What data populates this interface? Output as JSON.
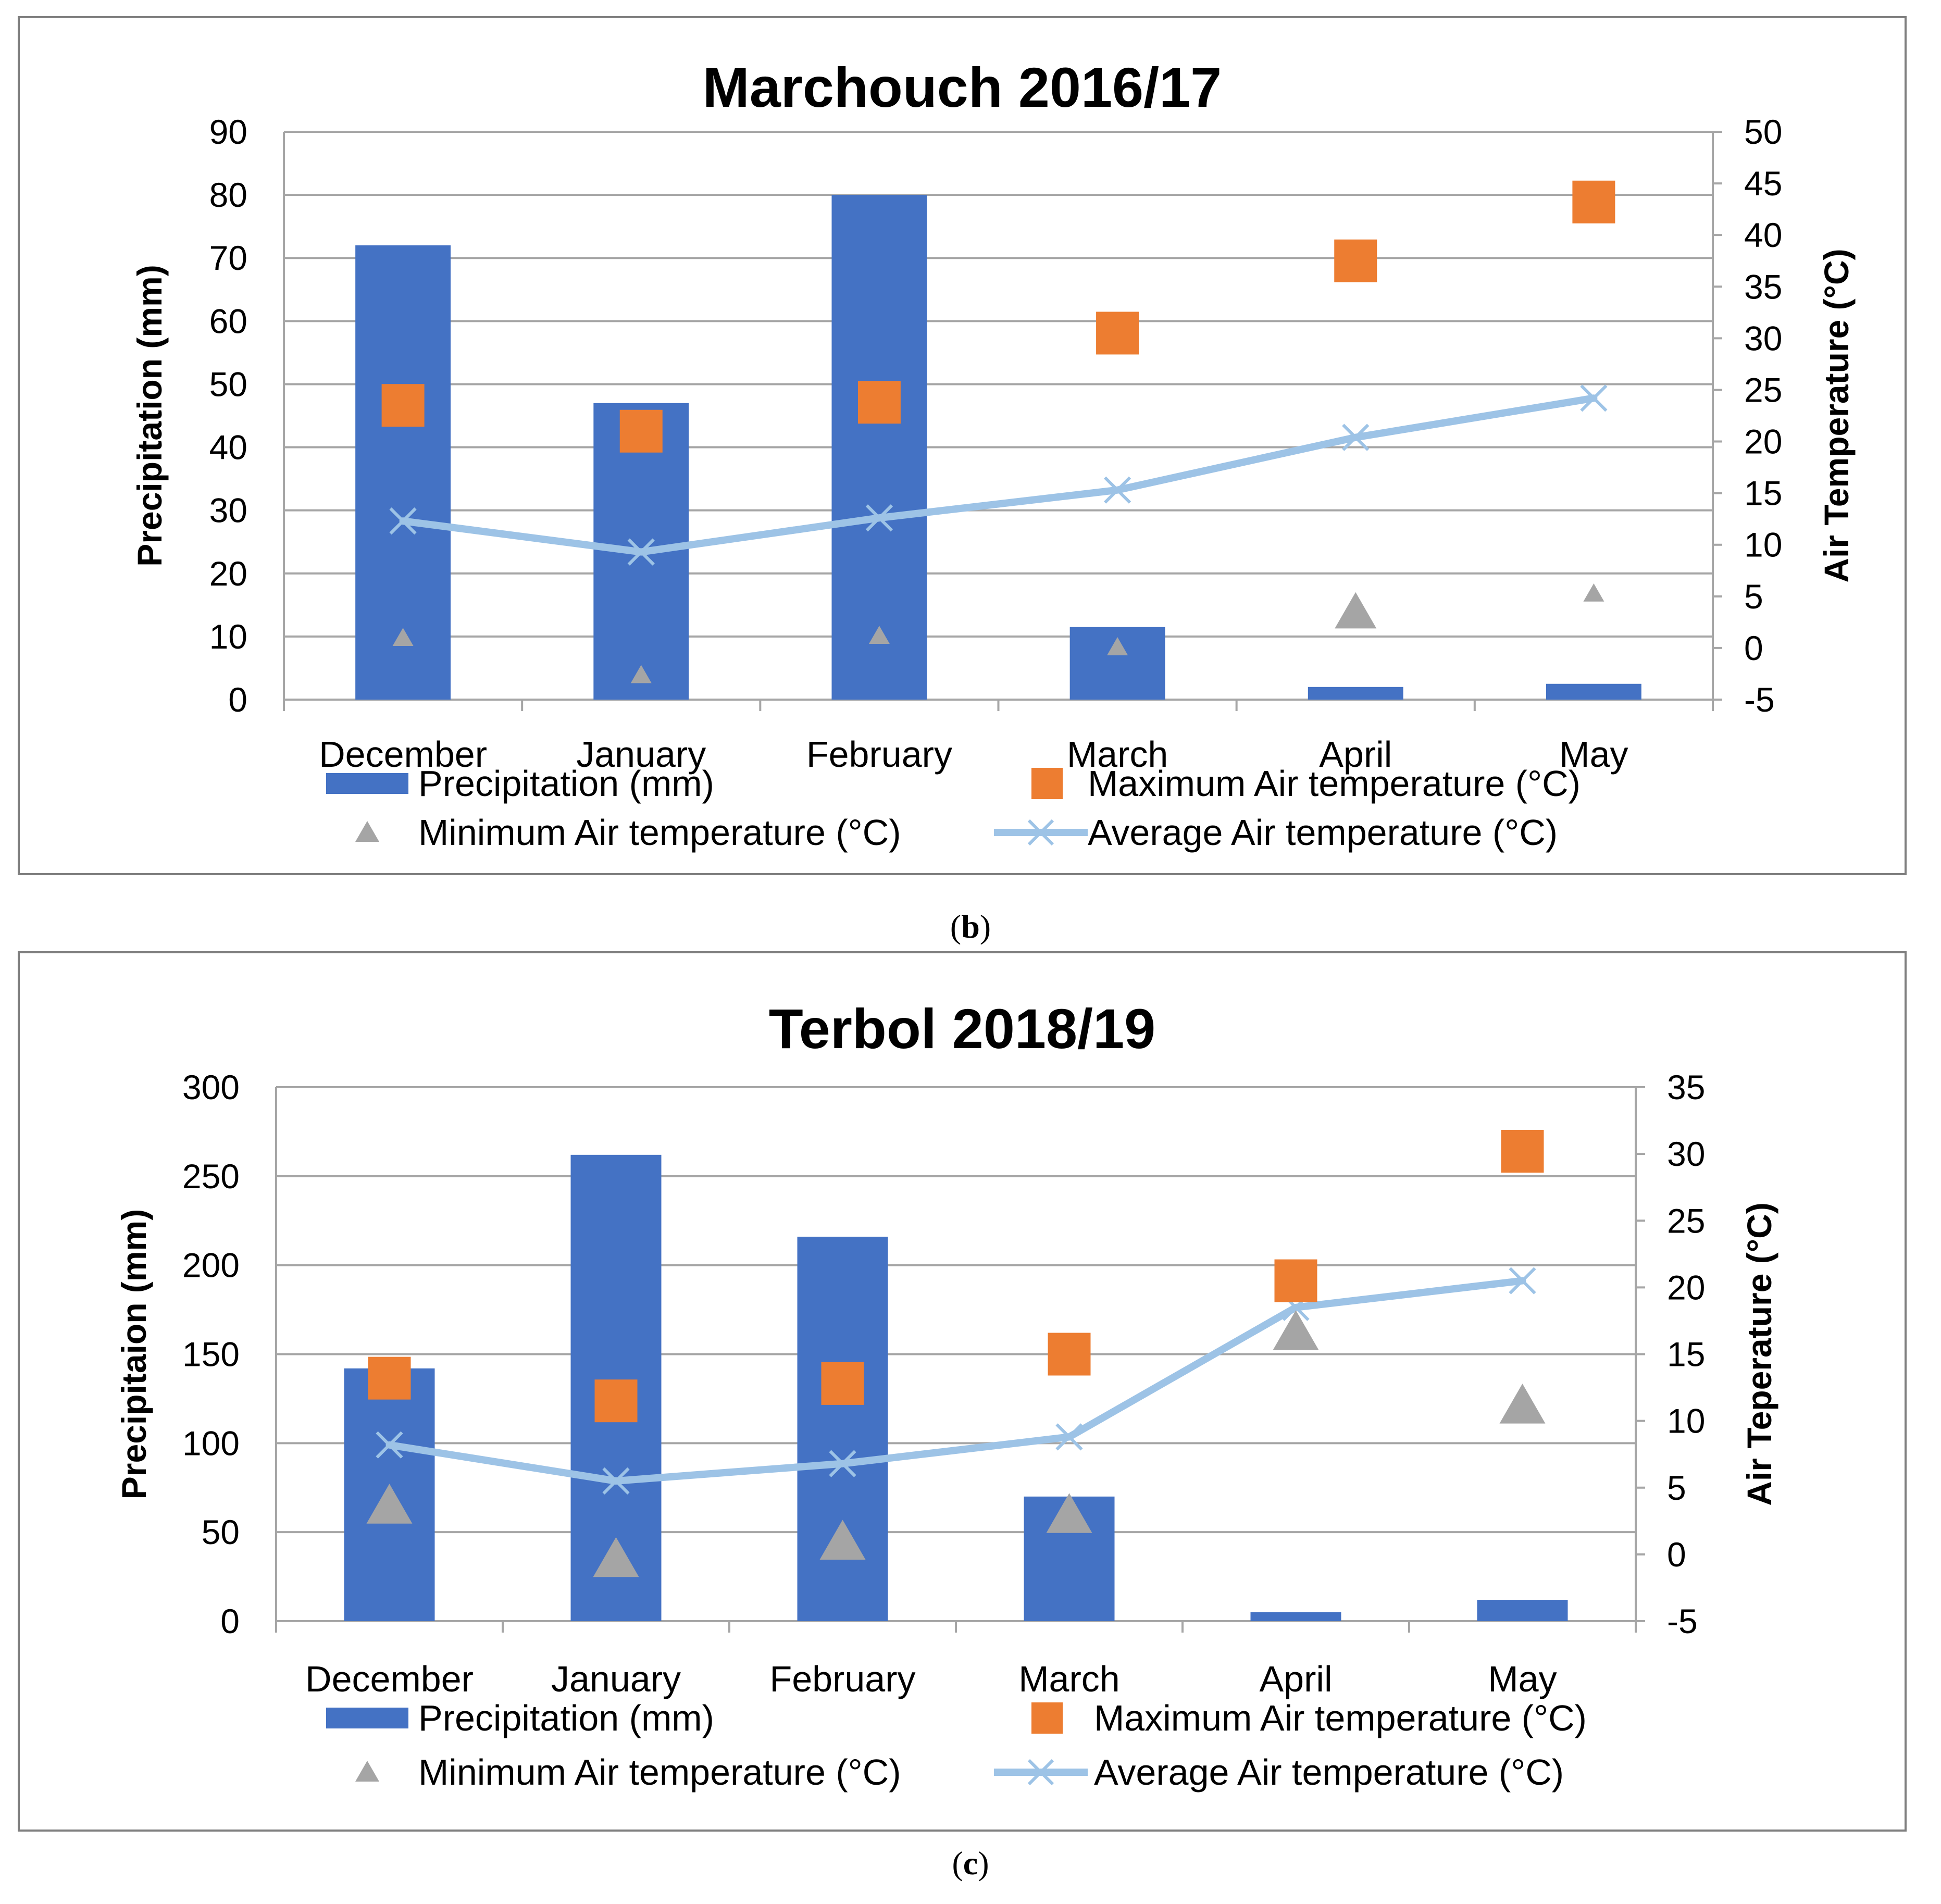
{
  "colors": {
    "precip": "#4472C4",
    "max": "#ED7D31",
    "min": "#A5A5A5",
    "avg": "#9DC3E6",
    "grid": "#A6A6A6",
    "frame": "#7F7F7F",
    "text": "#000000"
  },
  "legend": {
    "precip": "Precipitation (mm)",
    "max": "Maximum Air temperature (°C)",
    "min": "Minimum Air temperature (°C)",
    "avg": "Average Air temperature (°C)"
  },
  "captions": {
    "b_open": "(",
    "b": "b",
    "b_close": ")",
    "c_open": "(",
    "c": "c",
    "c_close": ")"
  },
  "chart_data": [
    {
      "type": "bar",
      "title": "Marchouch 2016/17",
      "categories": [
        "December",
        "January",
        "February",
        "March",
        "April",
        "May"
      ],
      "ylabel": "Precipitation (mm)",
      "y2label": "Air Temperature (°C)",
      "ylim": [
        0,
        90
      ],
      "yticks": [
        0,
        10,
        20,
        30,
        40,
        50,
        60,
        70,
        80,
        90
      ],
      "y2lim": [
        -5,
        50
      ],
      "y2ticks": [
        -5,
        0,
        5,
        10,
        15,
        20,
        25,
        30,
        35,
        40,
        45,
        50
      ],
      "grid": true,
      "legend_position": "bottom",
      "series": [
        {
          "name": "Precipitation (mm)",
          "kind": "bar",
          "axis": "left",
          "values": [
            72,
            47,
            80,
            11.5,
            2,
            2.5
          ]
        },
        {
          "name": "Maximum Air temperature (°C)",
          "kind": "marker-square",
          "axis": "right",
          "values": [
            23.5,
            21,
            23.8,
            30.5,
            37.5,
            43.2
          ]
        },
        {
          "name": "Minimum Air temperature (°C)",
          "kind": "marker-triangle",
          "axis": "right",
          "values": [
            0.9,
            -2.7,
            1.1,
            0.0,
            3.3,
            5.2
          ]
        },
        {
          "name": "Average Air temperature (°C)",
          "kind": "line-x",
          "axis": "right",
          "values": [
            12.3,
            9.3,
            12.6,
            15.3,
            20.4,
            24.2
          ]
        }
      ]
    },
    {
      "type": "bar",
      "title": "Terbol 2018/19",
      "categories": [
        "December",
        "January",
        "February",
        "March",
        "April",
        "May"
      ],
      "ylabel": "Precipitaion (mm)",
      "y2label": "Air Teperature (°C)",
      "ylim": [
        0,
        300
      ],
      "yticks": [
        0,
        50,
        100,
        150,
        200,
        250,
        300
      ],
      "y2lim": [
        -5,
        35
      ],
      "y2ticks": [
        -5,
        0,
        5,
        10,
        15,
        20,
        25,
        30,
        35
      ],
      "grid": true,
      "legend_position": "bottom",
      "series": [
        {
          "name": "Precipitation (mm)",
          "kind": "bar",
          "axis": "left",
          "values": [
            142,
            262,
            216,
            70,
            5,
            12
          ]
        },
        {
          "name": "Maximum Air temperature (°C)",
          "kind": "marker-square",
          "axis": "right",
          "values": [
            13.2,
            11.5,
            12.8,
            15.0,
            20.5,
            30.2
          ]
        },
        {
          "name": "Minimum Air temperature (°C)",
          "kind": "marker-triangle",
          "axis": "right",
          "values": [
            3.5,
            -0.5,
            0.8,
            2.8,
            16.5,
            11.0
          ]
        },
        {
          "name": "Average Air temperature (°C)",
          "kind": "line-x",
          "axis": "right",
          "values": [
            8.2,
            5.5,
            6.8,
            8.8,
            18.5,
            20.5
          ]
        }
      ]
    }
  ]
}
